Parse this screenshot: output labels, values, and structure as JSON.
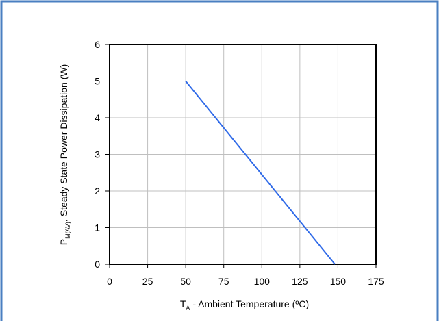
{
  "chart_data": {
    "type": "line",
    "xlabel": {
      "main": "T",
      "sub": "A",
      "rest": " - Ambient Temperature (ºC)"
    },
    "ylabel": {
      "main": "P",
      "sub": "M(AV)",
      "rest": ", Steady State Power Dissipation (W)"
    },
    "xlim": [
      0,
      175
    ],
    "ylim": [
      0,
      6
    ],
    "xticks": [
      "0",
      "25",
      "50",
      "75",
      "100",
      "125",
      "150",
      "175"
    ],
    "yticks": [
      "0",
      "1",
      "2",
      "3",
      "4",
      "5",
      "6"
    ],
    "grid": true,
    "series": [
      {
        "color": "#2f6ae8",
        "x": [
          50,
          148
        ],
        "y": [
          5,
          0
        ]
      }
    ]
  },
  "colors": {
    "frame": "#4a7fc1",
    "grid": "#bfbfbf",
    "axis": "#000000"
  }
}
